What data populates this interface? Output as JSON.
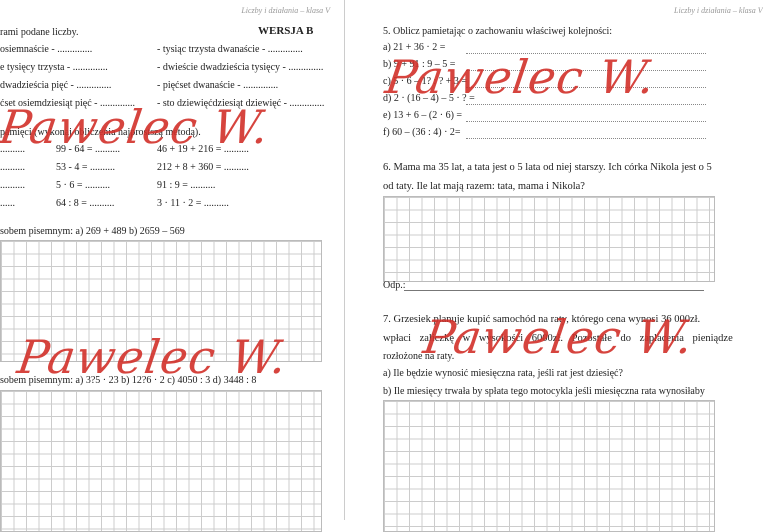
{
  "header": "Liczby i działania – klasa V",
  "watermark": "Pawelec W.",
  "left": {
    "intro": "rami podane liczby.",
    "version": "WERSJA B",
    "words_left": [
      "osiemnaście - ..............",
      "e tysięcy trzysta - ..............",
      "dwadzieścia pięć - ..............",
      "ćset osiemdziesiąt pięć - .............."
    ],
    "words_right": [
      "- tysiąc trzysta dwanaście - ..............",
      "- dwieście dwadzieścia tysięcy - ..............",
      "- pięćset dwanaście - ..............",
      "- sto dziewięćdziesiąt dziewięć - .............."
    ],
    "mental_heading": "pamięci (wykonaj obliczenia najprostszą metodą).",
    "mental_col1": [
      "..........",
      "..........",
      "..........",
      "......"
    ],
    "mental_col2": [
      "99 - 64 = ..........",
      "53 - 4 = ..........",
      "5 · 6 = ..........",
      "64 : 8 = .........."
    ],
    "mental_col3": [
      "46 + 19 + 216 = ..........",
      "212 + 8 + 360 = ..........",
      "91 : 9 = ..........",
      "3 · 11 · 2 = .........."
    ],
    "written1": "sobem pisemnym: a) 269 + 489      b) 2659 – 569",
    "written2": "sobem pisemnym: a) 3?5 · 23      b) 12?6 · 2      c) 4050 : 3      d) 3448 : 8"
  },
  "right": {
    "q5": "5. Oblicz pamietając o zachowaniu właściwej kolejności:",
    "q5_items": [
      "a) 21 + 36 · 2 =",
      "b) 9 + 91 : 9 – 5  =",
      "c) 5 · 6 – 1? : ? + 3 =",
      "d) 2 · (16 – 4) – 5 · ? =",
      "e) 13 + 6 – (2 · 6) =",
      "f) 60 – (36 : 4) · 2="
    ],
    "q6_l1": "6. Mama ma 35 lat, a tata jest o 5 lata od niej starszy. Ich córka Nikola jest o 5",
    "q6_l2": "od taty. Ile lat mają razem: tata, mama i Nikola?",
    "answer_label": "Odp.:",
    "q7_l1": "7. Grzesiek planuje kupić samochód na raty, którego cena wynosi 36 000zł.",
    "q7_l2": "wpłaci zaliczkę w wysokości 6000zł. Pozostałe do zapłacenia pieniądze",
    "q7_l3": "rozłożone na raty.",
    "q7_a": "a) Ile będzie wynosić miesięczna rata, jeśli rat jest dziesięć?",
    "q7_b": "b) Ile miesięcy trwała by spłata tego motocykla jeśli miesięczna rata wynosiłaby"
  }
}
